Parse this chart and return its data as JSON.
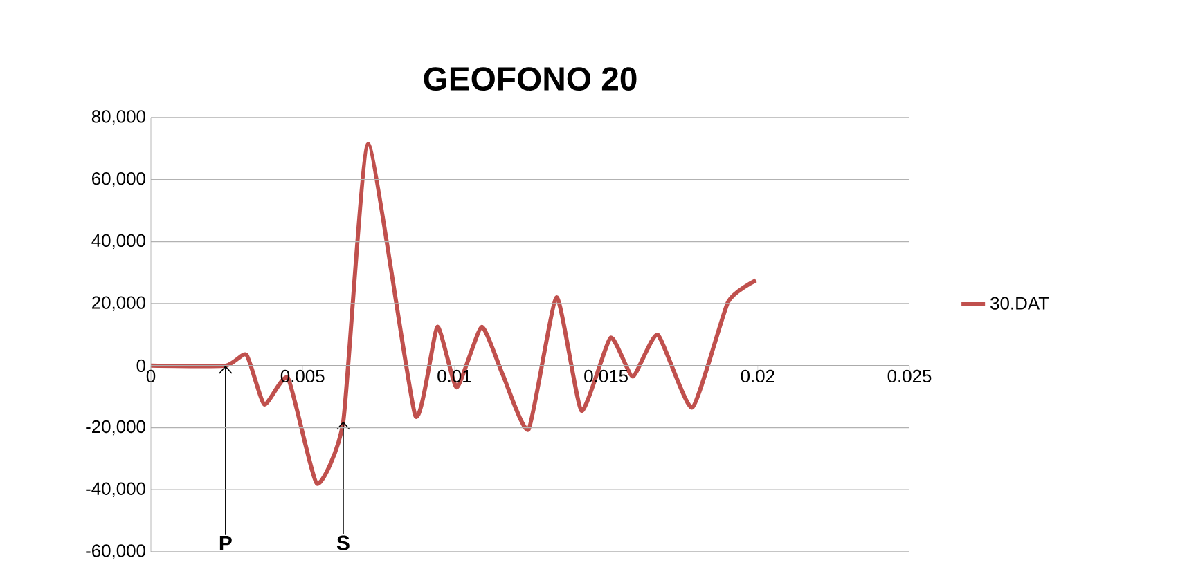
{
  "chart_data": {
    "type": "line",
    "title": "GEOFONO 20",
    "x": [
      0,
      0.00246,
      0.00315,
      0.00374,
      0.00452,
      0.00547,
      0.00634,
      0.00716,
      0.00871,
      0.00944,
      0.01008,
      0.0109,
      0.0116,
      0.01245,
      0.01337,
      0.01419,
      0.01515,
      0.01588,
      0.0167,
      0.01784,
      0.01902,
      0.01994
    ],
    "series": [
      {
        "name": "30.DAT",
        "color": "#c0504d",
        "values": [
          0,
          0,
          3500,
          -12500,
          -4000,
          -38000,
          -18000,
          71500,
          -16000,
          12500,
          -7000,
          12500,
          -3000,
          -20500,
          22000,
          -14500,
          9000,
          -3500,
          10000,
          -13500,
          20500,
          27500
        ]
      }
    ],
    "xlim": [
      0,
      0.025
    ],
    "xticks": [
      0,
      0.005,
      0.01,
      0.015,
      0.02,
      0.025
    ],
    "ylim": [
      -60000,
      80000
    ],
    "yticks": [
      {
        "value": -60000,
        "label": "-60,000"
      },
      {
        "value": -40000,
        "label": "-40,000"
      },
      {
        "value": -20000,
        "label": "-20,000"
      },
      {
        "value": 0,
        "label": "0"
      },
      {
        "value": 20000,
        "label": "20,000"
      },
      {
        "value": 40000,
        "label": "40,000"
      },
      {
        "value": 60000,
        "label": "60,000"
      },
      {
        "value": 80000,
        "label": "80,000"
      }
    ],
    "grid": "y",
    "legend": "right",
    "marker": "none",
    "line_style": "solid",
    "annotations": [
      {
        "text": "P",
        "x": 0.00246,
        "y": 0
      },
      {
        "text": "S",
        "x": 0.00634,
        "y": -18000
      }
    ]
  }
}
